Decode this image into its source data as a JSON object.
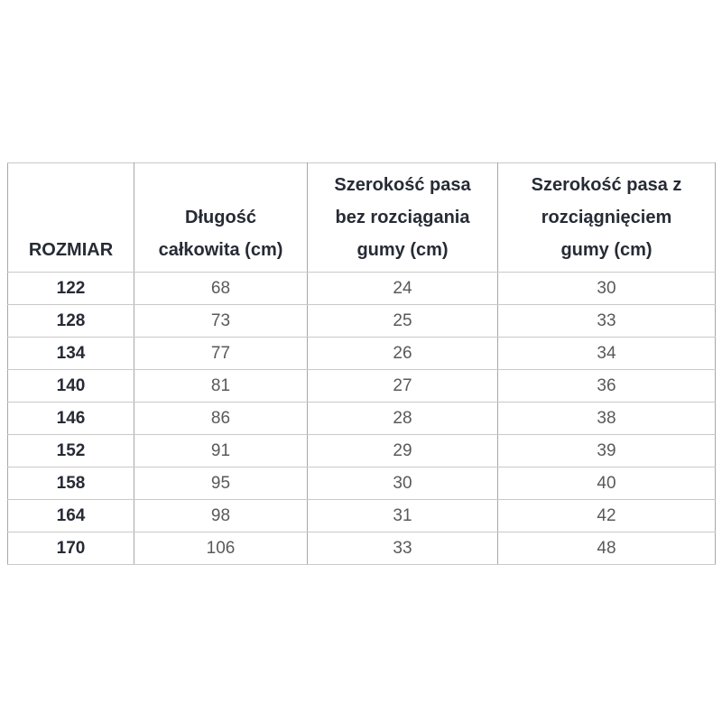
{
  "table": {
    "title_semantic": "Tabela rozmiarów",
    "headers": [
      "ROZMIAR",
      "Długość\ncałkowita (cm)",
      "Szerokość pasa\nbez rozciągania\ngumy (cm)",
      "Szerokość pasa z\nrozciągnięciem\ngumy (cm)"
    ],
    "rows": [
      [
        "122",
        "68",
        "24",
        "30"
      ],
      [
        "128",
        "73",
        "25",
        "33"
      ],
      [
        "134",
        "77",
        "26",
        "34"
      ],
      [
        "140",
        "81",
        "27",
        "36"
      ],
      [
        "146",
        "86",
        "28",
        "38"
      ],
      [
        "152",
        "91",
        "29",
        "39"
      ],
      [
        "158",
        "95",
        "30",
        "40"
      ],
      [
        "164",
        "98",
        "31",
        "42"
      ],
      [
        "170",
        "106",
        "33",
        "48"
      ]
    ]
  },
  "colors": {
    "background": "#ffffff",
    "text_dark": "#262b35",
    "text_gray": "#595959",
    "border_vertical": "#a8a8a8",
    "border_horizontal": "#c9c9c9"
  }
}
